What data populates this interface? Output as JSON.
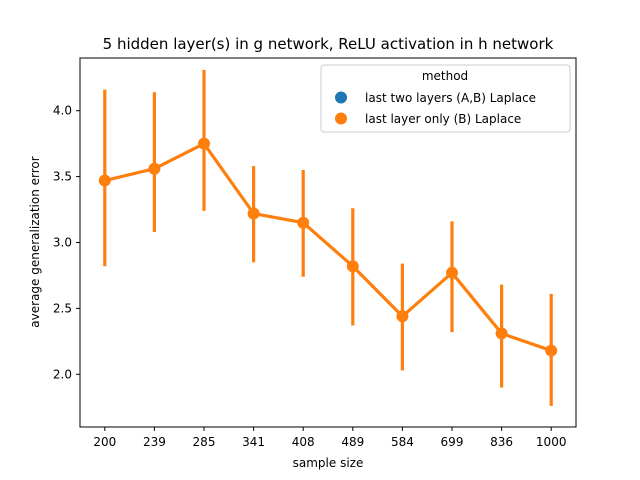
{
  "chart_data": {
    "type": "line",
    "title": "5 hidden layer(s) in g network, ReLU activation in h network",
    "xlabel": "sample size",
    "ylabel": "average generalization error",
    "categories": [
      "200",
      "239",
      "285",
      "341",
      "408",
      "489",
      "584",
      "699",
      "836",
      "1000"
    ],
    "ylim": [
      1.6,
      4.4
    ],
    "yticks": [
      2.0,
      2.5,
      3.0,
      3.5,
      4.0
    ],
    "ytick_labels": [
      "2.0",
      "2.5",
      "3.0",
      "3.5",
      "4.0"
    ],
    "grid": false,
    "legend": {
      "title": "method",
      "placement": "top-right",
      "entries": [
        {
          "label": "last two layers (A,B) Laplace",
          "color": "#1f77b4"
        },
        {
          "label": "last layer only (B) Laplace",
          "color": "#ff7f0e"
        }
      ]
    },
    "series": [
      {
        "name": "last layer only (B) Laplace",
        "color": "#ff7f0e",
        "values": [
          3.47,
          3.56,
          3.75,
          3.22,
          3.15,
          2.82,
          2.44,
          2.77,
          2.31,
          2.18
        ],
        "ci_low": [
          2.82,
          3.08,
          3.24,
          2.85,
          2.74,
          2.37,
          2.03,
          2.32,
          1.9,
          1.76
        ],
        "ci_high": [
          4.16,
          4.14,
          4.31,
          3.58,
          3.55,
          3.26,
          2.84,
          3.16,
          2.68,
          2.61
        ]
      }
    ]
  }
}
